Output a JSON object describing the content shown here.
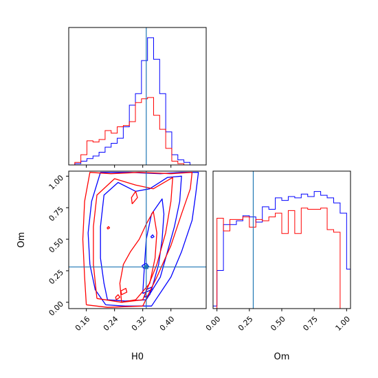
{
  "chart_data": {
    "type": "corner",
    "truth": {
      "H0": 0.33,
      "Om": 0.28
    },
    "truth_color": "#1f77b4",
    "series_colors": [
      "#0000ff",
      "#ff0000"
    ],
    "panels": [
      {
        "id": "hist-H0",
        "type": "histogram",
        "xlim": [
          0.11,
          0.5
        ],
        "ylim": [
          0,
          1.08
        ],
        "xticks": [
          0.16,
          0.24,
          0.32,
          0.4
        ],
        "show_tick_labels": false,
        "bin_edges": [
          0.11,
          0.1272,
          0.1444,
          0.1616,
          0.1788,
          0.196,
          0.2132,
          0.2304,
          0.2476,
          0.2648,
          0.282,
          0.2992,
          0.3164,
          0.3336,
          0.3508,
          0.368,
          0.3852,
          0.4024,
          0.4196,
          0.4368,
          0.454,
          0.4712
        ],
        "series": [
          {
            "color": "#0000ff",
            "values": [
              0.0,
              0.01,
              0.03,
              0.05,
              0.07,
              0.1,
              0.14,
              0.17,
              0.21,
              0.3,
              0.47,
              0.56,
              0.82,
              1.0,
              0.83,
              0.56,
              0.26,
              0.08,
              0.04,
              0.02,
              0.0
            ]
          },
          {
            "color": "#ff0000",
            "values": [
              0.0,
              0.02,
              0.08,
              0.19,
              0.18,
              0.2,
              0.27,
              0.25,
              0.3,
              0.31,
              0.34,
              0.49,
              0.52,
              0.53,
              0.39,
              0.28,
              0.13,
              0.03,
              0.01,
              0.0,
              0.0
            ]
          }
        ]
      },
      {
        "id": "contour-H0-Om",
        "type": "contour",
        "xlim": [
          0.11,
          0.5
        ],
        "ylim": [
          -0.05,
          1.04
        ],
        "xticks": [
          0.16,
          0.24,
          0.32,
          0.4
        ],
        "yticks": [
          0.0,
          0.25,
          0.5,
          0.75,
          1.0
        ],
        "x_tick_labels": [
          "0.16",
          "0.24",
          "0.32",
          "0.40"
        ],
        "y_tick_labels": [
          "0.00",
          "0.25",
          "0.50",
          "0.75",
          "1.00"
        ],
        "xlabel": "H0",
        "ylabel": "Om",
        "contours": [
          {
            "color": "#0000ff",
            "points": [
              [
                0.215,
                -0.02
              ],
              [
                0.27,
                -0.03
              ],
              [
                0.345,
                -0.03
              ],
              [
                0.4,
                0.2
              ],
              [
                0.43,
                0.4
              ],
              [
                0.46,
                0.65
              ],
              [
                0.47,
                0.85
              ],
              [
                0.478,
                1.03
              ],
              [
                0.43,
                1.03
              ],
              [
                0.37,
                1.02
              ],
              [
                0.28,
                1.03
              ],
              [
                0.2,
                1.03
              ],
              [
                0.175,
                0.8
              ],
              [
                0.165,
                0.55
              ],
              [
                0.17,
                0.3
              ],
              [
                0.185,
                0.1
              ],
              [
                0.215,
                -0.02
              ]
            ]
          },
          {
            "color": "#0000ff",
            "points": [
              [
                0.22,
                0.02
              ],
              [
                0.27,
                0.01
              ],
              [
                0.33,
                0.02
              ],
              [
                0.37,
                0.2
              ],
              [
                0.39,
                0.4
              ],
              [
                0.41,
                0.6
              ],
              [
                0.425,
                0.8
              ],
              [
                0.43,
                1.0
              ],
              [
                0.39,
                0.99
              ],
              [
                0.34,
                0.9
              ],
              [
                0.3,
                0.88
              ],
              [
                0.25,
                0.95
              ],
              [
                0.21,
                0.85
              ],
              [
                0.2,
                0.6
              ],
              [
                0.2,
                0.35
              ],
              [
                0.21,
                0.15
              ],
              [
                0.22,
                0.02
              ]
            ]
          },
          {
            "color": "#0000ff",
            "points": [
              [
                0.32,
                0.07
              ],
              [
                0.345,
                0.1
              ],
              [
                0.365,
                0.3
              ],
              [
                0.375,
                0.5
              ],
              [
                0.38,
                0.7
              ],
              [
                0.375,
                0.82
              ],
              [
                0.345,
                0.7
              ],
              [
                0.33,
                0.5
              ],
              [
                0.325,
                0.3
              ],
              [
                0.32,
                0.07
              ]
            ]
          },
          {
            "color": "#0000ff",
            "points": [
              [
                0.325,
                0.04
              ],
              [
                0.34,
                0.06
              ],
              [
                0.345,
                0.12
              ],
              [
                0.33,
                0.1
              ],
              [
                0.325,
                0.04
              ]
            ]
          },
          {
            "color": "#0000ff",
            "points": [
              [
                0.346,
                0.51
              ],
              [
                0.352,
                0.52
              ],
              [
                0.348,
                0.535
              ],
              [
                0.343,
                0.52
              ],
              [
                0.346,
                0.51
              ]
            ]
          },
          {
            "color": "#0000ff",
            "points": [
              [
                0.322,
                0.27
              ],
              [
                0.338,
                0.28
              ],
              [
                0.33,
                0.31
              ],
              [
                0.318,
                0.29
              ],
              [
                0.322,
                0.27
              ]
            ]
          },
          {
            "color": "#ff0000",
            "points": [
              [
                0.16,
                -0.02
              ],
              [
                0.22,
                -0.04
              ],
              [
                0.32,
                -0.03
              ],
              [
                0.36,
                0.2
              ],
              [
                0.4,
                0.45
              ],
              [
                0.43,
                0.7
              ],
              [
                0.455,
                0.9
              ],
              [
                0.46,
                1.03
              ],
              [
                0.4,
                1.02
              ],
              [
                0.31,
                1.03
              ],
              [
                0.23,
                1.02
              ],
              [
                0.17,
                1.03
              ],
              [
                0.155,
                0.8
              ],
              [
                0.15,
                0.5
              ],
              [
                0.155,
                0.2
              ],
              [
                0.16,
                -0.02
              ]
            ]
          },
          {
            "color": "#ff0000",
            "points": [
              [
                0.19,
                0.03
              ],
              [
                0.26,
                0.0
              ],
              [
                0.32,
                0.02
              ],
              [
                0.36,
                0.3
              ],
              [
                0.385,
                0.55
              ],
              [
                0.4,
                0.8
              ],
              [
                0.405,
                0.99
              ],
              [
                0.35,
                0.9
              ],
              [
                0.3,
                0.93
              ],
              [
                0.24,
                0.98
              ],
              [
                0.19,
                0.85
              ],
              [
                0.18,
                0.6
              ],
              [
                0.18,
                0.3
              ],
              [
                0.19,
                0.03
              ]
            ]
          },
          {
            "color": "#ff0000",
            "points": [
              [
                0.26,
                0.0
              ],
              [
                0.3,
                0.02
              ],
              [
                0.34,
                0.15
              ],
              [
                0.355,
                0.35
              ],
              [
                0.36,
                0.55
              ],
              [
                0.35,
                0.72
              ],
              [
                0.33,
                0.62
              ],
              [
                0.31,
                0.5
              ],
              [
                0.285,
                0.4
              ],
              [
                0.265,
                0.3
              ],
              [
                0.255,
                0.15
              ],
              [
                0.26,
                0.0
              ]
            ]
          },
          {
            "color": "#ff0000",
            "points": [
              [
                0.245,
                0.02
              ],
              [
                0.255,
                0.04
              ],
              [
                0.25,
                0.06
              ],
              [
                0.243,
                0.04
              ],
              [
                0.245,
                0.02
              ]
            ]
          },
          {
            "color": "#ff0000",
            "points": [
              [
                0.29,
                0.78
              ],
              [
                0.305,
                0.83
              ],
              [
                0.3,
                0.88
              ],
              [
                0.288,
                0.83
              ],
              [
                0.29,
                0.78
              ]
            ]
          },
          {
            "color": "#ff0000",
            "points": [
              [
                0.221,
                0.58
              ],
              [
                0.226,
                0.59
              ],
              [
                0.223,
                0.6
              ],
              [
                0.219,
                0.59
              ],
              [
                0.221,
                0.58
              ]
            ]
          },
          {
            "color": "#ff0000",
            "points": [
              [
                0.26,
                0.06
              ],
              [
                0.275,
                0.08
              ],
              [
                0.272,
                0.11
              ],
              [
                0.258,
                0.09
              ],
              [
                0.26,
                0.06
              ]
            ]
          }
        ]
      },
      {
        "id": "hist-Om",
        "type": "histogram",
        "xlim": [
          -0.03,
          1.03
        ],
        "ylim": [
          0,
          1.08
        ],
        "xticks": [
          0.0,
          0.25,
          0.5,
          0.75,
          1.0
        ],
        "x_tick_labels": [
          "0.00",
          "0.25",
          "0.50",
          "0.75",
          "1.00"
        ],
        "xlabel": "Om",
        "bin_edges": [
          -0.03,
          0.0,
          0.05,
          0.1,
          0.15,
          0.2,
          0.25,
          0.3,
          0.35,
          0.4,
          0.45,
          0.5,
          0.55,
          0.6,
          0.65,
          0.7,
          0.75,
          0.8,
          0.85,
          0.9,
          0.95,
          1.0,
          1.03
        ],
        "series": [
          {
            "color": "#0000ff",
            "values": [
              0.02,
              0.3,
              0.66,
              0.66,
              0.69,
              0.73,
              0.72,
              0.68,
              0.8,
              0.78,
              0.87,
              0.85,
              0.88,
              0.87,
              0.9,
              0.88,
              0.92,
              0.89,
              0.87,
              0.83,
              0.75,
              0.31
            ]
          },
          {
            "color": "#ff0000",
            "values": [
              0.0,
              0.71,
              0.61,
              0.7,
              0.7,
              0.72,
              0.64,
              0.7,
              0.69,
              0.72,
              0.75,
              0.59,
              0.77,
              0.59,
              0.79,
              0.78,
              0.78,
              0.79,
              0.62,
              0.6,
              0.0,
              0.0
            ]
          }
        ]
      }
    ]
  }
}
